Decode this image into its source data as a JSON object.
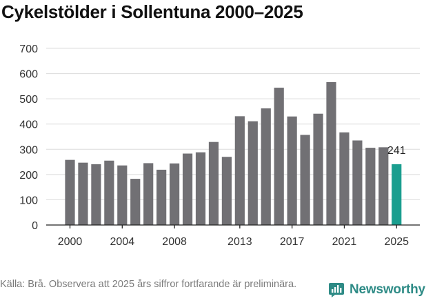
{
  "title": "Cykelstölder i Sollentuna 2000–2025",
  "source": "Källa: Brå. Observera att 2025 års siffror fortfarande är preliminära.",
  "brand": {
    "name": "Newsworthy",
    "icon": "newsworthy-logo-icon"
  },
  "colors": {
    "bar": "#717074",
    "highlight": "#1a9e8f",
    "brand": "#2e8b86"
  },
  "chart_data": {
    "type": "bar",
    "title": "Cykelstölder i Sollentuna 2000–2025",
    "xlabel": "",
    "ylabel": "",
    "ylim": [
      0,
      700
    ],
    "yticks": [
      0,
      100,
      200,
      300,
      400,
      500,
      600,
      700
    ],
    "xticks": [
      2000,
      2004,
      2008,
      2013,
      2017,
      2021,
      2025
    ],
    "grid": true,
    "categories": [
      2000,
      2001,
      2002,
      2003,
      2004,
      2005,
      2006,
      2007,
      2008,
      2009,
      2010,
      2011,
      2012,
      2013,
      2014,
      2015,
      2016,
      2017,
      2018,
      2019,
      2020,
      2021,
      2022,
      2023,
      2024,
      2025
    ],
    "values": [
      258,
      247,
      241,
      255,
      236,
      183,
      245,
      219,
      244,
      283,
      288,
      329,
      270,
      431,
      411,
      462,
      544,
      430,
      357,
      441,
      566,
      367,
      335,
      306,
      308,
      241
    ],
    "highlight": {
      "category": 2025,
      "label": "241"
    }
  }
}
